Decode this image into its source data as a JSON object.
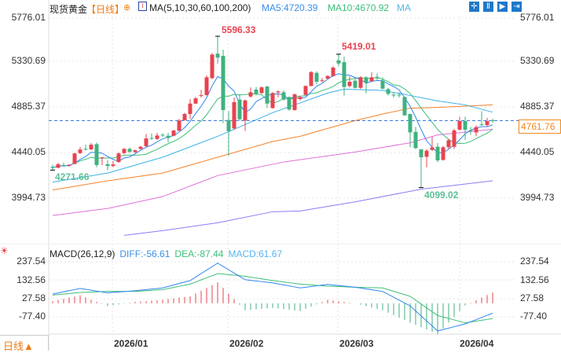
{
  "header": {
    "instrument": "现货黄金",
    "period": "【日线】",
    "ma_label": "MA(5,10,30,60,100,200)",
    "ma5": "MA5:4720.39",
    "ma10": "MA10:4670.92",
    "ma_more": "MA",
    "tools": [
      "crosshair-icon",
      "range-icon",
      "play-icon",
      "exit-icon"
    ]
  },
  "price_axis": [
    "5776.01",
    "5330.69",
    "4885.37",
    "4440.05",
    "3994.73"
  ],
  "current_price": "4761.76",
  "highlights": {
    "high": "5596.33",
    "low_start": "4271.66",
    "second_high": "5419.01",
    "low": "4099.02"
  },
  "macd": {
    "label": "MACD(26,12,9)",
    "diff": "DIFF:-56.61",
    "dea": "DEA:-87.44",
    "macd": "MACD:61.67",
    "axis": [
      "237.54",
      "132.56",
      "27.58",
      "-77.40"
    ]
  },
  "dates": [
    "2026/01",
    "2026/02",
    "2026/03",
    "2026/04"
  ],
  "period_button": "日线▲",
  "colors": {
    "up": "#e8434f",
    "down": "#3fb27f",
    "ma5": "#2f86ee",
    "ma10": "#3cbf7a",
    "ma30": "#3bb0e8",
    "ma60": "#f5832a",
    "ma100": "#e070d8",
    "ma200": "#8a7cf5",
    "accent": "#f08a1c"
  },
  "chart_data": {
    "type": "candlestick",
    "ylim": [
      3994.73,
      5776.01
    ],
    "candles": [
      [
        4305,
        4325,
        4272,
        4295
      ],
      [
        4295,
        4345,
        4290,
        4330
      ],
      [
        4322,
        4345,
        4305,
        4318
      ],
      [
        4315,
        4330,
        4305,
        4325
      ],
      [
        4333,
        4445,
        4330,
        4437
      ],
      [
        4440,
        4500,
        4432,
        4475
      ],
      [
        4482,
        4525,
        4465,
        4478
      ],
      [
        4477,
        4540,
        4470,
        4523
      ],
      [
        4528,
        4545,
        4300,
        4322
      ],
      [
        4390,
        4400,
        4320,
        4398
      ],
      [
        4330,
        4370,
        4270,
        4312
      ],
      [
        4313,
        4360,
        4300,
        4328
      ],
      [
        4352,
        4450,
        4345,
        4437
      ],
      [
        4440,
        4490,
        4430,
        4482
      ],
      [
        4482,
        4495,
        4440,
        4452
      ],
      [
        4450,
        4475,
        4440,
        4468
      ],
      [
        4482,
        4510,
        4475,
        4503
      ],
      [
        4508,
        4630,
        4500,
        4585
      ],
      [
        4590,
        4635,
        4570,
        4585
      ],
      [
        4580,
        4640,
        4570,
        4614
      ],
      [
        4622,
        4635,
        4600,
        4617
      ],
      [
        4612,
        4640,
        4545,
        4590
      ],
      [
        4612,
        4670,
        4605,
        4663
      ],
      [
        4663,
        4780,
        4655,
        4762
      ],
      [
        4765,
        4840,
        4760,
        4827
      ],
      [
        4827,
        4975,
        4780,
        4930
      ],
      [
        4930,
        4995,
        4925,
        4982
      ],
      [
        5005,
        5065,
        4990,
        5014
      ],
      [
        5014,
        5210,
        5010,
        5190
      ],
      [
        5182,
        5430,
        5170,
        5415
      ],
      [
        5424,
        5596.33,
        5325,
        5385
      ],
      [
        5402,
        5463,
        4737,
        4866
      ],
      [
        4767,
        4855,
        4411,
        4658
      ],
      [
        4684,
        4990,
        4670,
        4944
      ],
      [
        4970,
        5024,
        4760,
        4775
      ],
      [
        4762,
        4970,
        4660,
        4962
      ],
      [
        5000,
        5090,
        4990,
        5042
      ],
      [
        5068,
        5095,
        5010,
        5026
      ],
      [
        5034,
        5100,
        5025,
        5091
      ],
      [
        5099,
        5105,
        4885,
        4930
      ],
      [
        4886,
        5045,
        4880,
        5034
      ],
      [
        5040,
        5060,
        4990,
        5050
      ],
      [
        5042,
        5060,
        4960,
        4970
      ],
      [
        4995,
        5000,
        4860,
        4871
      ],
      [
        4866,
        5030,
        4860,
        5021
      ],
      [
        4975,
        5010,
        4960,
        4995
      ],
      [
        5016,
        5110,
        5010,
        5104
      ],
      [
        5104,
        5250,
        5100,
        5242
      ],
      [
        5234,
        5250,
        5120,
        5146
      ],
      [
        5152,
        5185,
        5140,
        5160
      ],
      [
        5177,
        5210,
        5170,
        5203
      ],
      [
        5203,
        5300,
        5195,
        5286
      ],
      [
        5358,
        5419.01,
        5300,
        5327
      ],
      [
        5340,
        5395,
        5010,
        5094
      ],
      [
        5104,
        5200,
        5090,
        5146
      ],
      [
        5156,
        5190,
        5080,
        5086
      ],
      [
        5086,
        5200,
        5075,
        5190
      ],
      [
        5190,
        5200,
        5030,
        5138
      ],
      [
        5151,
        5240,
        5145,
        5190
      ],
      [
        5195,
        5230,
        5160,
        5188
      ],
      [
        5156,
        5190,
        5070,
        5078
      ],
      [
        5073,
        5085,
        5010,
        5026
      ],
      [
        5018,
        5040,
        4990,
        5015
      ],
      [
        5018,
        5040,
        4990,
        5015
      ],
      [
        4995,
        5000,
        4810,
        4814
      ],
      [
        4827,
        4830,
        4500,
        4645
      ],
      [
        4650,
        4700,
        4480,
        4490
      ],
      [
        4477,
        4480,
        4099.02,
        4399
      ],
      [
        4404,
        4480,
        4300,
        4464
      ],
      [
        4472,
        4600,
        4460,
        4497
      ],
      [
        4503,
        4540,
        4350,
        4368
      ],
      [
        4373,
        4510,
        4365,
        4498
      ],
      [
        4498,
        4580,
        4480,
        4568
      ],
      [
        4503,
        4680,
        4480,
        4664
      ],
      [
        4672,
        4800,
        4665,
        4757
      ],
      [
        4757,
        4800,
        4570,
        4671
      ],
      [
        4668,
        4700,
        4620,
        4664
      ],
      [
        4645,
        4715,
        4608,
        4697
      ],
      [
        4725,
        4855,
        4710,
        4720
      ],
      [
        4718,
        4790,
        4700,
        4757
      ],
      [
        4765,
        4780,
        4740,
        4761.76
      ]
    ],
    "ma_long_samples": {
      "ma30": [
        [
          0,
          4153
        ],
        [
          10,
          4243
        ],
        [
          20,
          4399
        ],
        [
          30,
          4606
        ],
        [
          40,
          4840
        ],
        [
          50,
          5034
        ],
        [
          53,
          5073
        ],
        [
          60,
          5060
        ],
        [
          64,
          5021
        ],
        [
          70,
          4956
        ],
        [
          75,
          4917
        ],
        [
          80,
          4845
        ]
      ],
      "ma60": [
        [
          0,
          4075
        ],
        [
          10,
          4166
        ],
        [
          20,
          4243
        ],
        [
          30,
          4399
        ],
        [
          40,
          4555
        ],
        [
          45,
          4606
        ],
        [
          50,
          4684
        ],
        [
          55,
          4762
        ],
        [
          60,
          4827
        ],
        [
          65,
          4884
        ],
        [
          70,
          4892
        ],
        [
          75,
          4905
        ],
        [
          80,
          4917
        ]
      ],
      "ma100": [
        [
          0,
          3823
        ],
        [
          10,
          3893
        ],
        [
          20,
          4010
        ],
        [
          30,
          4218
        ],
        [
          42,
          4352
        ],
        [
          55,
          4451
        ],
        [
          65,
          4542
        ],
        [
          70,
          4620
        ],
        [
          80,
          4676
        ]
      ],
      "ma200": [
        [
          13,
          3626
        ],
        [
          20,
          3673
        ],
        [
          30,
          3751
        ],
        [
          40,
          3860
        ],
        [
          45,
          3867
        ],
        [
          55,
          3958
        ],
        [
          67,
          4083
        ],
        [
          80,
          4166
        ]
      ]
    },
    "macd_samples": {
      "index": [
        0,
        5,
        10,
        15,
        20,
        25,
        30,
        35,
        40,
        45,
        50,
        55,
        60,
        65,
        70,
        75,
        80
      ],
      "diff": [
        53,
        85,
        60,
        72,
        88,
        130,
        230,
        135,
        117,
        88,
        108,
        92,
        68,
        -15,
        -158,
        -118,
        -56.61
      ],
      "dea": [
        47,
        62,
        68,
        68,
        78,
        110,
        170,
        155,
        130,
        110,
        98,
        92,
        88,
        40,
        -70,
        -112,
        -87.44
      ]
    },
    "macd_ylim": [
      -140,
      260
    ]
  }
}
